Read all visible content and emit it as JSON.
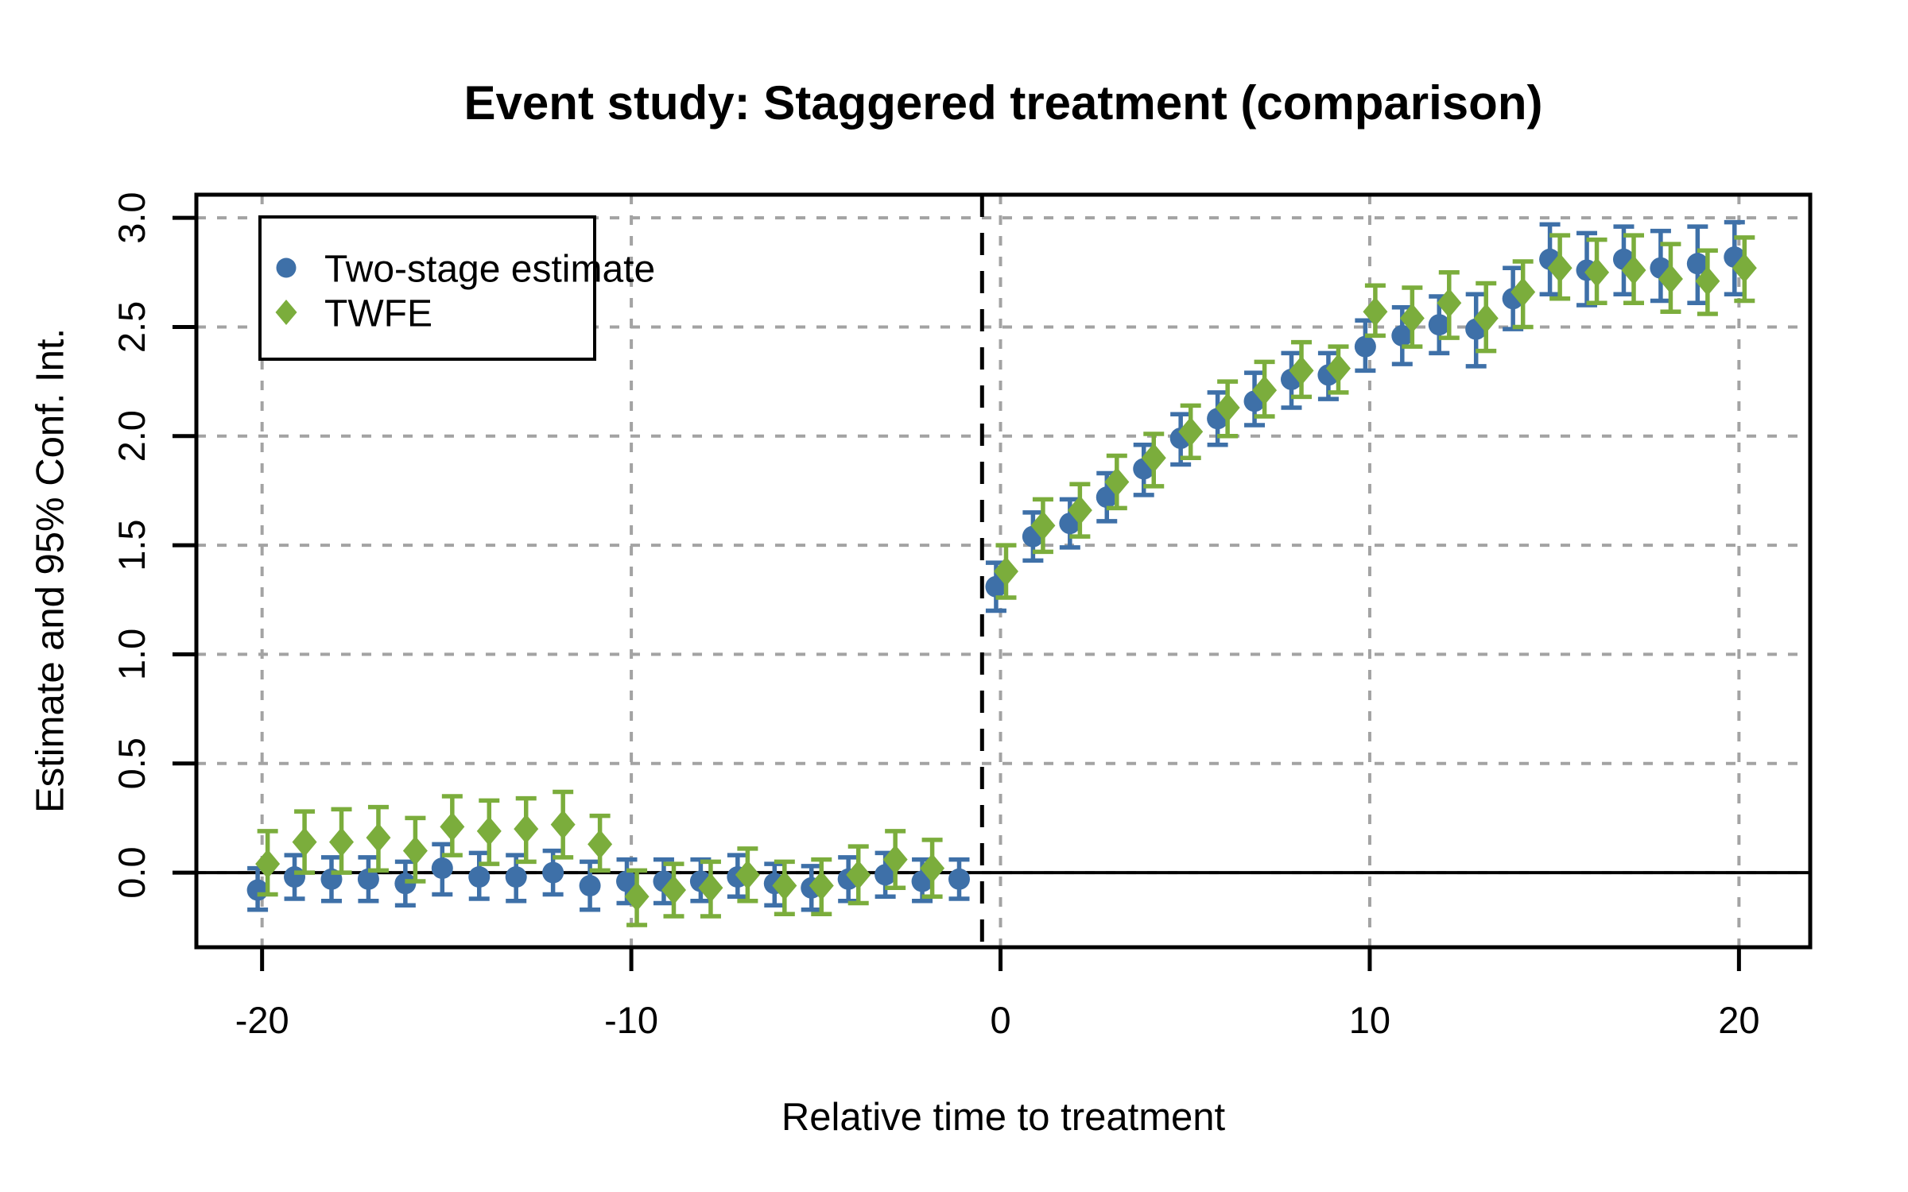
{
  "title": "Event study: Staggered treatment (comparison)",
  "x_axis": {
    "label": "Relative time to treatment",
    "ticks": [
      -20,
      -10,
      0,
      10,
      20
    ],
    "lim": [
      -21.78,
      21.93
    ]
  },
  "y_axis": {
    "label": "Estimate and 95% Conf. Int.",
    "ticks": [
      0.0,
      0.5,
      1.0,
      1.5,
      2.0,
      2.5,
      3.0
    ],
    "tick_labels": [
      "0.0",
      "0.5",
      "1.0",
      "1.5",
      "2.0",
      "2.5",
      "3.0"
    ],
    "lim": [
      -0.342,
      3.106
    ]
  },
  "reference_lines": {
    "vline_x": -0.5,
    "hline_y": 0
  },
  "legend": {
    "position": "top-left",
    "items": [
      {
        "label": "Two-stage estimate",
        "marker": "circle",
        "color": "#3e70a8"
      },
      {
        "label": "TWFE",
        "marker": "diamond",
        "color": "#7bad3c"
      }
    ]
  },
  "colors": {
    "blue": "#3e70a8",
    "green": "#7bad3c",
    "grid": "#a3a3a3",
    "axis": "#000000",
    "background": "#ffffff"
  },
  "chart_data": {
    "type": "scatter",
    "subtype": "event-study with 95% CI error bars",
    "grid": true,
    "x": [
      -20,
      -19,
      -18,
      -17,
      -16,
      -15,
      -14,
      -13,
      -12,
      -11,
      -10,
      -9,
      -8,
      -7,
      -6,
      -5,
      -4,
      -3,
      -2,
      -1,
      0,
      1,
      2,
      3,
      4,
      5,
      6,
      7,
      8,
      9,
      10,
      11,
      12,
      13,
      14,
      15,
      16,
      17,
      18,
      19,
      20
    ],
    "series": [
      {
        "name": "Two-stage estimate",
        "marker": "circle",
        "color": "#3e70a8",
        "x_offset": -0.12,
        "estimates": [
          -0.08,
          -0.02,
          -0.03,
          -0.03,
          -0.05,
          0.02,
          -0.02,
          -0.02,
          0.0,
          -0.06,
          -0.04,
          -0.04,
          -0.04,
          -0.02,
          -0.05,
          -0.07,
          -0.03,
          -0.01,
          -0.04,
          -0.03,
          1.31,
          1.54,
          1.6,
          1.72,
          1.85,
          1.99,
          2.08,
          2.16,
          2.26,
          2.28,
          2.41,
          2.46,
          2.51,
          2.49,
          2.63,
          2.81,
          2.76,
          2.81,
          2.77,
          2.79,
          2.82
        ],
        "ci_low": [
          -0.17,
          -0.12,
          -0.13,
          -0.13,
          -0.15,
          -0.1,
          -0.12,
          -0.13,
          -0.1,
          -0.17,
          -0.14,
          -0.14,
          -0.13,
          -0.11,
          -0.15,
          -0.17,
          -0.13,
          -0.11,
          -0.13,
          -0.12,
          1.2,
          1.43,
          1.49,
          1.61,
          1.73,
          1.87,
          1.96,
          2.05,
          2.13,
          2.17,
          2.3,
          2.33,
          2.38,
          2.32,
          2.49,
          2.65,
          2.6,
          2.65,
          2.62,
          2.61,
          2.65
        ],
        "ci_high": [
          0.02,
          0.08,
          0.07,
          0.07,
          0.05,
          0.13,
          0.09,
          0.08,
          0.1,
          0.05,
          0.06,
          0.06,
          0.06,
          0.08,
          0.04,
          0.03,
          0.07,
          0.09,
          0.06,
          0.06,
          1.42,
          1.65,
          1.71,
          1.83,
          1.96,
          2.1,
          2.2,
          2.29,
          2.38,
          2.38,
          2.53,
          2.59,
          2.64,
          2.65,
          2.77,
          2.97,
          2.93,
          2.96,
          2.94,
          2.96,
          2.98
        ]
      },
      {
        "name": "TWFE",
        "marker": "diamond",
        "color": "#7bad3c",
        "x_offset": 0.15,
        "estimates": [
          0.04,
          0.14,
          0.14,
          0.16,
          0.1,
          0.21,
          0.19,
          0.2,
          0.22,
          0.13,
          -0.11,
          -0.08,
          -0.07,
          -0.01,
          -0.06,
          -0.06,
          -0.01,
          0.06,
          0.02,
          null,
          1.38,
          1.59,
          1.66,
          1.79,
          1.9,
          2.02,
          2.13,
          2.21,
          2.3,
          2.31,
          2.57,
          2.54,
          2.61,
          2.54,
          2.66,
          2.77,
          2.75,
          2.76,
          2.72,
          2.71,
          2.77
        ],
        "ci_low": [
          -0.1,
          0.0,
          0.0,
          0.01,
          -0.04,
          0.08,
          0.04,
          0.05,
          0.07,
          0.01,
          -0.24,
          -0.2,
          -0.2,
          -0.13,
          -0.19,
          -0.19,
          -0.14,
          -0.07,
          -0.11,
          null,
          1.26,
          1.47,
          1.54,
          1.67,
          1.77,
          1.9,
          2.0,
          2.09,
          2.18,
          2.2,
          2.46,
          2.41,
          2.45,
          2.39,
          2.5,
          2.63,
          2.61,
          2.61,
          2.57,
          2.56,
          2.62
        ],
        "ci_high": [
          0.19,
          0.28,
          0.29,
          0.3,
          0.25,
          0.35,
          0.33,
          0.34,
          0.37,
          0.26,
          0.01,
          0.04,
          0.05,
          0.11,
          0.05,
          0.06,
          0.12,
          0.19,
          0.15,
          null,
          1.5,
          1.71,
          1.78,
          1.91,
          2.01,
          2.14,
          2.25,
          2.34,
          2.43,
          2.41,
          2.69,
          2.68,
          2.75,
          2.7,
          2.8,
          2.92,
          2.9,
          2.92,
          2.88,
          2.85,
          2.91
        ]
      }
    ]
  }
}
